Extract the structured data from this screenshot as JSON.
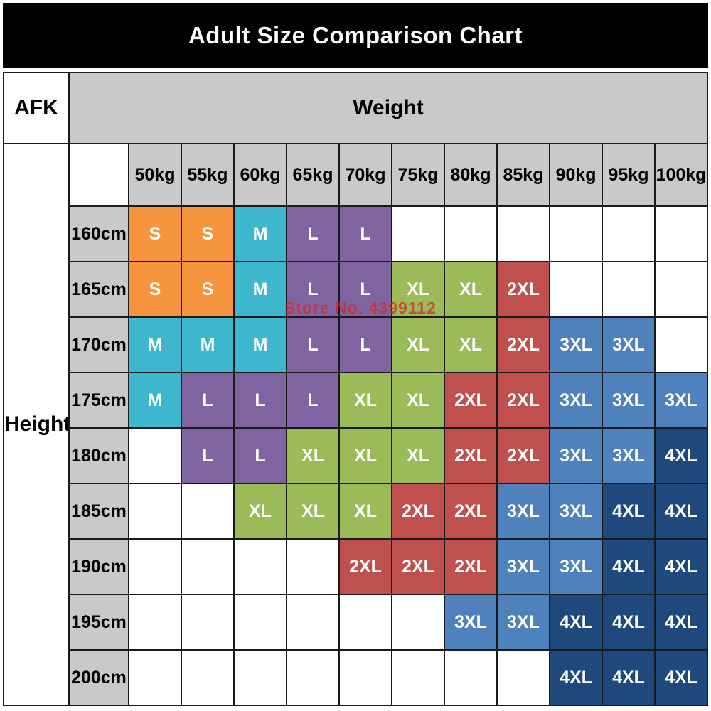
{
  "title": "Adult Size Comparison Chart",
  "corner_label": "AFK",
  "weight_axis_label": "Weight",
  "height_axis_label": "Height",
  "watermark": "Store No. 4399112",
  "colors": {
    "banner_bg": "#000000",
    "banner_text": "#ffffff",
    "header_gray": "#c8c9ca",
    "grid_line": "#1a1a1a",
    "cell_text": "#ffffff",
    "watermark_red": "#d22828"
  },
  "chart_data": {
    "type": "table",
    "title": "Adult Size Comparison Chart",
    "xlabel": "Weight",
    "ylabel": "Height",
    "columns": [
      "50kg",
      "55kg",
      "60kg",
      "65kg",
      "70kg",
      "75kg",
      "80kg",
      "85kg",
      "90kg",
      "95kg",
      "100kg"
    ],
    "rows": [
      {
        "label": "160cm",
        "cells": [
          "S",
          "S",
          "M",
          "L",
          "L",
          null,
          null,
          null,
          null,
          null,
          null
        ]
      },
      {
        "label": "165cm",
        "cells": [
          "S",
          "S",
          "M",
          "L",
          "L",
          "XL",
          "XL",
          "2XL",
          null,
          null,
          null
        ]
      },
      {
        "label": "170cm",
        "cells": [
          "M",
          "M",
          "M",
          "L",
          "L",
          "XL",
          "XL",
          "2XL",
          "3XL",
          "3XL",
          null
        ]
      },
      {
        "label": "175cm",
        "cells": [
          "M",
          "L",
          "L",
          "L",
          "XL",
          "XL",
          "2XL",
          "2XL",
          "3XL",
          "3XL",
          "3XL"
        ]
      },
      {
        "label": "180cm",
        "cells": [
          null,
          "L",
          "L",
          "XL",
          "XL",
          "XL",
          "2XL",
          "2XL",
          "3XL",
          "3XL",
          "4XL"
        ]
      },
      {
        "label": "185cm",
        "cells": [
          null,
          null,
          "XL",
          "XL",
          "XL",
          "2XL",
          "2XL",
          "3XL",
          "3XL",
          "4XL",
          "4XL"
        ]
      },
      {
        "label": "190cm",
        "cells": [
          null,
          null,
          null,
          null,
          "2XL",
          "2XL",
          "2XL",
          "3XL",
          "3XL",
          "4XL",
          "4XL"
        ]
      },
      {
        "label": "195cm",
        "cells": [
          null,
          null,
          null,
          null,
          null,
          null,
          "3XL",
          "3XL",
          "4XL",
          "4XL",
          "4XL"
        ]
      },
      {
        "label": "200cm",
        "cells": [
          null,
          null,
          null,
          null,
          null,
          null,
          null,
          null,
          "4XL",
          "4XL",
          "4XL"
        ]
      }
    ],
    "size_colors": {
      "S": "#f6953e",
      "M": "#3db7ce",
      "L": "#8064a2",
      "XL": "#9bbb59",
      "2XL": "#c0504d",
      "3XL": "#4f81bd",
      "4XL": "#1f497d"
    }
  }
}
